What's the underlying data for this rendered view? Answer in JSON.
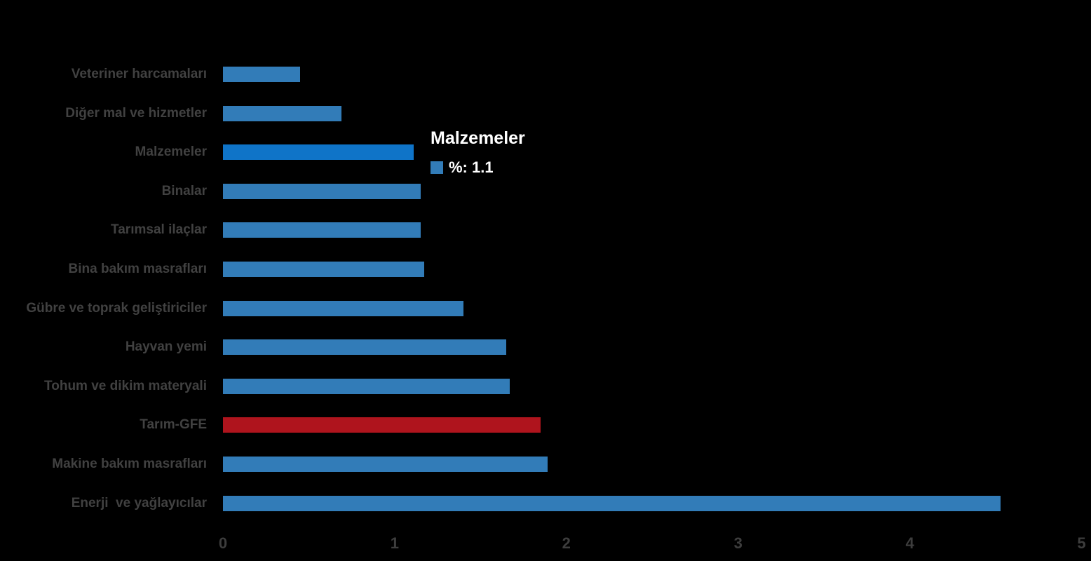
{
  "colors": {
    "background": "#000000",
    "bar_default": "#327cb8",
    "bar_highlight": "#0f74c8",
    "bar_emphasis": "#af141d",
    "label_text": "#414141",
    "axis_text": "#3d3d3d",
    "tooltip_text": "#ffffff"
  },
  "chart_data": {
    "type": "bar",
    "orientation": "horizontal",
    "title": "",
    "xlabel": "",
    "ylabel": "",
    "series_name": "%",
    "categories": [
      "Veteriner harcamaları",
      "Diğer mal ve hizmetler",
      "Malzemeler",
      "Binalar",
      "Tarımsal ilaçlar",
      "Bina bakım masrafları",
      "Gübre ve toprak geliştiriciler",
      "Hayvan yemi",
      "Tohum ve dikim materyali",
      "Tarım-GFE",
      "Makine bakım masrafları",
      "Enerji  ve yağlayıcılar"
    ],
    "values": [
      0.45,
      0.69,
      1.11,
      1.15,
      1.15,
      1.17,
      1.4,
      1.65,
      1.67,
      1.85,
      1.89,
      4.53
    ],
    "bar_color_roles": [
      "default",
      "default",
      "highlight",
      "default",
      "default",
      "default",
      "default",
      "default",
      "default",
      "emphasis",
      "default",
      "default"
    ],
    "xlim": [
      0,
      5
    ],
    "x_ticks": [
      "0",
      "1",
      "2",
      "3",
      "4",
      "5"
    ],
    "grid": "off",
    "legend_position": "none"
  },
  "tooltip": {
    "title": "Malzemeler",
    "series_label": "%",
    "value": "1.1",
    "text": "%: 1.1"
  }
}
